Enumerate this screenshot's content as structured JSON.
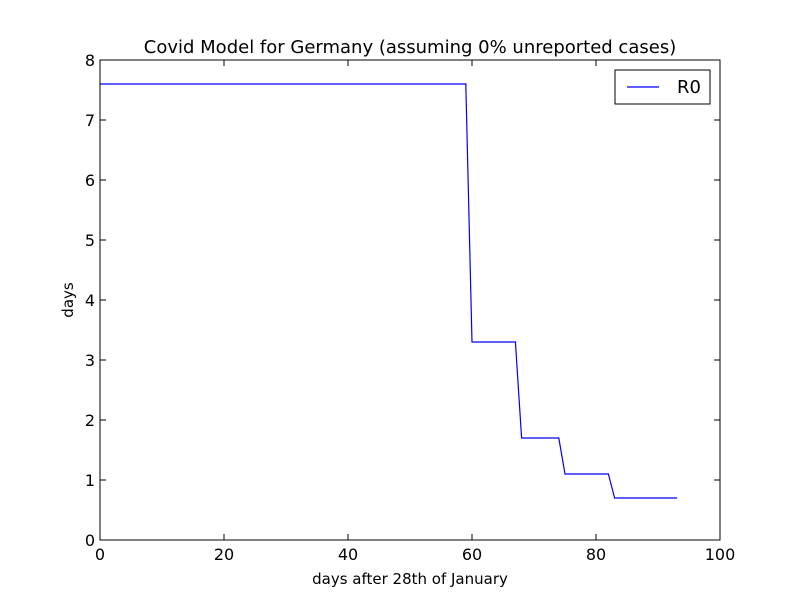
{
  "chart_data": {
    "type": "line",
    "title": "Covid Model for Germany (assuming 0% unreported cases)",
    "xlabel": "days after 28th of January",
    "ylabel": "days",
    "xlim": [
      0,
      100
    ],
    "ylim": [
      0,
      8
    ],
    "x_ticks": [
      0,
      20,
      40,
      60,
      80,
      100
    ],
    "y_ticks": [
      0,
      1,
      2,
      3,
      4,
      5,
      6,
      7,
      8
    ],
    "x_tick_labels": [
      "0",
      "20",
      "40",
      "60",
      "80",
      "100"
    ],
    "y_tick_labels": [
      "0",
      "1",
      "2",
      "3",
      "4",
      "5",
      "6",
      "7",
      "8"
    ],
    "grid": false,
    "legend_position": "top-right",
    "series": [
      {
        "name": "R0",
        "color": "#0000ff",
        "x": [
          0,
          59,
          60,
          67,
          68,
          74,
          75,
          82,
          83,
          93
        ],
        "y": [
          7.6,
          7.6,
          3.3,
          3.3,
          1.7,
          1.7,
          1.1,
          1.1,
          0.7,
          0.7
        ]
      }
    ]
  }
}
